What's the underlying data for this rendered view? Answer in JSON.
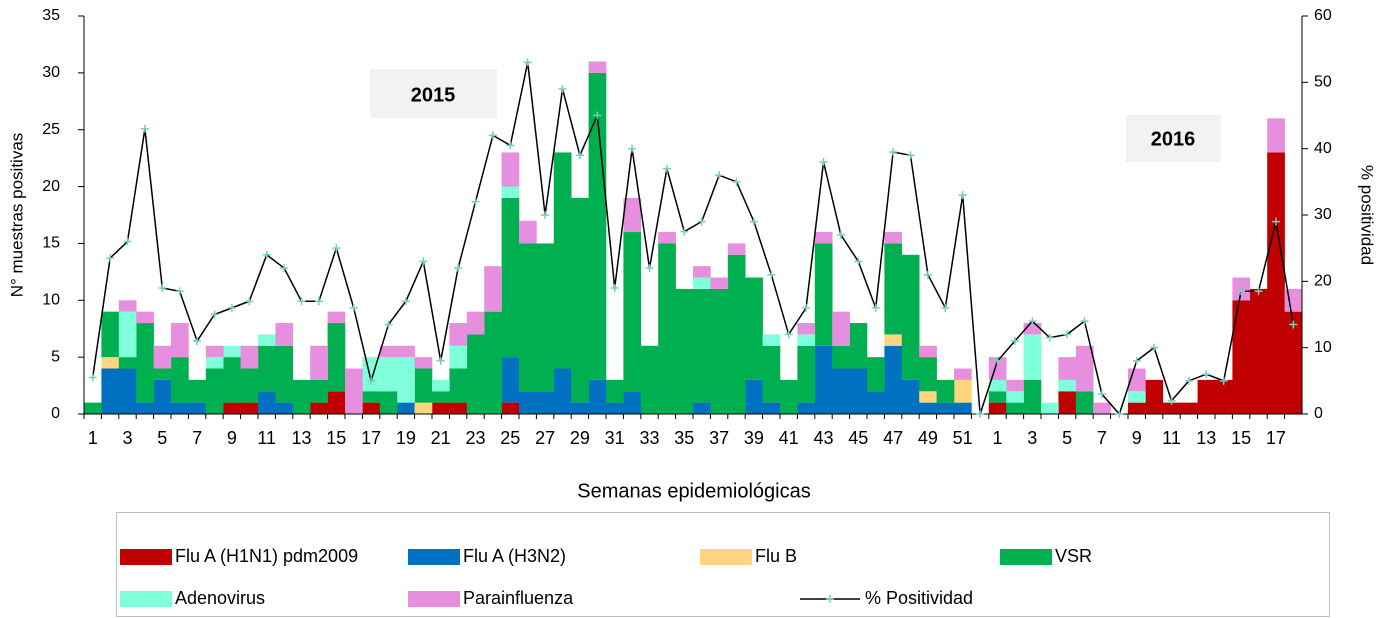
{
  "chart_data": {
    "type": "bar",
    "annotations": [
      "2015",
      "2016"
    ],
    "x_label": "Semanas epidemiológicas",
    "y_label": "N° muestras positivas",
    "y2_label": "% positividad",
    "categories": [
      1,
      null,
      3,
      null,
      5,
      null,
      7,
      null,
      9,
      null,
      11,
      null,
      13,
      null,
      15,
      null,
      17,
      null,
      19,
      null,
      21,
      null,
      23,
      null,
      25,
      null,
      27,
      null,
      29,
      null,
      31,
      null,
      33,
      null,
      35,
      null,
      37,
      null,
      39,
      null,
      41,
      null,
      43,
      null,
      45,
      null,
      47,
      null,
      49,
      null,
      51,
      null,
      1,
      null,
      3,
      null,
      5,
      null,
      7,
      null,
      9,
      null,
      11,
      null,
      13,
      null,
      15,
      null,
      17,
      null
    ],
    "series": [
      {
        "name": "Flu A (H1N1) pdm2009",
        "color": "#c00000",
        "values": [
          0,
          0,
          0,
          0,
          0,
          0,
          0,
          0,
          1,
          1,
          0,
          0,
          0,
          1,
          2,
          0,
          1,
          0,
          0,
          0,
          1,
          1,
          0,
          0,
          1,
          0,
          0,
          0,
          0,
          0,
          0,
          0,
          0,
          0,
          0,
          0,
          0,
          0,
          0,
          0,
          0,
          0,
          0,
          0,
          0,
          0,
          0,
          0,
          0,
          0,
          0,
          0,
          1,
          0,
          0,
          0,
          2,
          0,
          0,
          0,
          1,
          3,
          1,
          1,
          3,
          3,
          10,
          11,
          23,
          9
        ]
      },
      {
        "name": "Flu A (H3N2)",
        "color": "#0070c0",
        "values": [
          0,
          4,
          4,
          1,
          3,
          1,
          1,
          0,
          0,
          0,
          2,
          1,
          0,
          0,
          0,
          0,
          0,
          0,
          1,
          0,
          0,
          0,
          0,
          0,
          4,
          2,
          2,
          4,
          1,
          3,
          1,
          2,
          0,
          0,
          0,
          1,
          0,
          0,
          3,
          1,
          0,
          1,
          6,
          4,
          4,
          2,
          6,
          3,
          1,
          1,
          1,
          0,
          0,
          0,
          0,
          0,
          0,
          0,
          0,
          0,
          0,
          0,
          0,
          0,
          0,
          0,
          0,
          0,
          0,
          0
        ]
      },
      {
        "name": "Flu B",
        "color": "#fdd57e",
        "values": [
          0,
          1,
          0,
          0,
          0,
          0,
          0,
          0,
          0,
          0,
          0,
          0,
          0,
          0,
          0,
          0,
          0,
          0,
          0,
          1,
          0,
          0,
          0,
          0,
          0,
          0,
          0,
          0,
          0,
          0,
          0,
          0,
          0,
          0,
          0,
          0,
          0,
          0,
          0,
          0,
          0,
          0,
          0,
          0,
          0,
          0,
          1,
          0,
          1,
          0,
          2,
          0,
          0,
          0,
          0,
          0,
          0,
          0,
          0,
          0,
          0,
          0,
          0,
          0,
          0,
          0,
          0,
          0,
          0,
          0
        ]
      },
      {
        "name": "VSR",
        "color": "#00b050",
        "values": [
          1,
          4,
          1,
          7,
          1,
          4,
          2,
          4,
          4,
          3,
          4,
          5,
          3,
          2,
          6,
          0,
          1,
          2,
          0,
          3,
          1,
          3,
          7,
          9,
          14,
          13,
          13,
          19,
          18,
          27,
          2,
          14,
          6,
          15,
          11,
          10,
          11,
          14,
          9,
          5,
          3,
          5,
          9,
          2,
          4,
          3,
          8,
          11,
          3,
          2,
          0,
          0,
          1,
          1,
          3,
          0,
          0,
          2,
          0,
          0,
          0,
          0,
          0,
          0,
          0,
          0,
          0,
          0,
          0,
          0
        ]
      },
      {
        "name": "Adenovirus",
        "color": "#80ffdb",
        "values": [
          0,
          0,
          4,
          0,
          0,
          0,
          0,
          1,
          1,
          0,
          1,
          0,
          0,
          0,
          0,
          0,
          3,
          3,
          4,
          0,
          1,
          2,
          0,
          0,
          1,
          0,
          0,
          0,
          0,
          0,
          0,
          0,
          0,
          0,
          0,
          1,
          0,
          0,
          0,
          1,
          0,
          1,
          0,
          0,
          0,
          0,
          0,
          0,
          0,
          0,
          0,
          0,
          1,
          1,
          4,
          1,
          1,
          0,
          0,
          0,
          1,
          0,
          0,
          0,
          0,
          0,
          0,
          0,
          0,
          0
        ]
      },
      {
        "name": "Parainfluenza",
        "color": "#e58fde",
        "values": [
          0,
          0,
          1,
          1,
          2,
          3,
          0,
          1,
          0,
          2,
          0,
          2,
          0,
          3,
          1,
          4,
          0,
          1,
          1,
          1,
          0,
          2,
          2,
          4,
          3,
          2,
          0,
          0,
          0,
          1,
          0,
          3,
          0,
          1,
          0,
          1,
          1,
          1,
          0,
          0,
          0,
          1,
          1,
          3,
          0,
          0,
          1,
          0,
          1,
          0,
          1,
          0,
          2,
          1,
          1,
          0,
          2,
          4,
          1,
          0,
          2,
          0,
          0,
          0,
          0,
          0,
          2,
          0,
          3,
          2
        ]
      },
      {
        "name": "% Positividad",
        "type": "line",
        "axis": "y2",
        "color": "#000000",
        "marker_color": "#6fd3b8",
        "values": [
          5.5,
          23.5,
          26,
          43,
          19,
          18.5,
          11,
          15,
          16,
          17,
          24,
          22,
          17,
          17,
          25,
          16,
          5,
          13.5,
          17,
          23,
          8,
          22,
          32,
          42,
          40.5,
          53,
          30,
          49,
          39,
          45,
          19,
          40,
          22,
          37,
          27.5,
          29,
          36,
          35,
          29,
          21,
          12,
          16,
          38,
          27,
          23,
          16,
          39.5,
          39,
          21,
          16,
          33,
          0,
          8,
          11,
          14,
          11.5,
          12,
          14,
          3,
          0,
          8,
          10,
          2,
          5,
          6,
          5,
          18.5,
          18.5,
          29,
          13.5
        ]
      }
    ],
    "ylim": [
      0,
      35
    ],
    "yticks": [
      0,
      5,
      10,
      15,
      20,
      25,
      30,
      35
    ],
    "y2lim": [
      0,
      60
    ],
    "y2ticks": [
      0,
      10,
      20,
      30,
      40,
      50,
      60
    ],
    "legend": "bottom"
  }
}
